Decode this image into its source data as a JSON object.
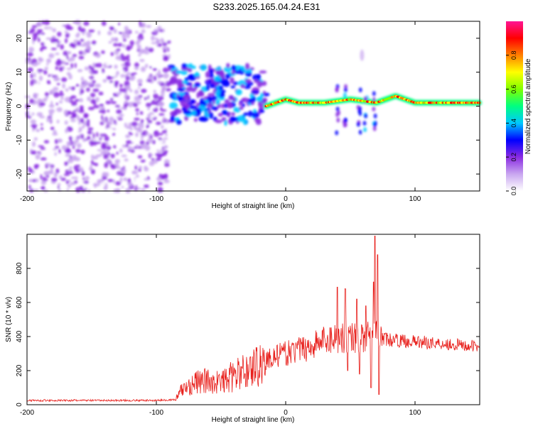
{
  "title": "S233.2025.165.04.24.E31",
  "chart_data": [
    {
      "type": "heatmap",
      "xlabel": "Height of straight line (km)",
      "ylabel": "Frequency (Hz)",
      "xlim": [
        -200,
        150
      ],
      "ylim": [
        -25,
        25
      ],
      "xticks": [
        -200,
        -100,
        0,
        100
      ],
      "yticks": [
        -20,
        -10,
        0,
        10,
        20
      ],
      "colorbar": {
        "label": "Normalized spectral amplitude",
        "range": [
          0,
          1
        ],
        "ticks": [
          "0.0",
          "0.2",
          "0.4",
          "0.6",
          "0.8"
        ],
        "colors": [
          "#ffffff",
          "#c9a6f0",
          "#8a2be2",
          "#0000ff",
          "#00c8ff",
          "#00ff80",
          "#80ff00",
          "#ffff00",
          "#ff8000",
          "#ff0000",
          "#ff1493"
        ]
      },
      "regions": [
        {
          "x": [
            -200,
            -90
          ],
          "freq": [
            -25,
            25
          ],
          "amplitude": 0.12,
          "description_free": true
        },
        {
          "x": [
            -90,
            -15
          ],
          "freq": [
            -5,
            12
          ],
          "amplitude": 0.3
        },
        {
          "x": [
            -15,
            150
          ],
          "freq": [
            -2,
            4
          ],
          "amplitude": 0.85
        }
      ],
      "ridge": [
        {
          "x": -15,
          "freq": 0
        },
        {
          "x": 0,
          "freq": 2
        },
        {
          "x": 10,
          "freq": 1
        },
        {
          "x": 30,
          "freq": 1
        },
        {
          "x": 50,
          "freq": 2
        },
        {
          "x": 70,
          "freq": 1
        },
        {
          "x": 85,
          "freq": 3
        },
        {
          "x": 100,
          "freq": 1
        },
        {
          "x": 120,
          "freq": 1
        },
        {
          "x": 150,
          "freq": 1
        }
      ]
    },
    {
      "type": "line",
      "xlabel": "Height of straight line (km)",
      "ylabel": "SNR (10 * v/v)",
      "xlim": [
        -200,
        150
      ],
      "ylim": [
        0,
        1000
      ],
      "xticks": [
        -200,
        -100,
        0,
        100
      ],
      "yticks": [
        0,
        200,
        400,
        600,
        800
      ],
      "color": "#e8201c",
      "envelope": [
        {
          "x": -200,
          "y": 25
        },
        {
          "x": -150,
          "y": 25
        },
        {
          "x": -100,
          "y": 25
        },
        {
          "x": -85,
          "y": 30
        },
        {
          "x": -80,
          "y": 90
        },
        {
          "x": -70,
          "y": 130
        },
        {
          "x": -60,
          "y": 140
        },
        {
          "x": -50,
          "y": 130
        },
        {
          "x": -40,
          "y": 170
        },
        {
          "x": -30,
          "y": 200
        },
        {
          "x": -20,
          "y": 240
        },
        {
          "x": -10,
          "y": 280
        },
        {
          "x": 0,
          "y": 300
        },
        {
          "x": 10,
          "y": 320
        },
        {
          "x": 20,
          "y": 345
        },
        {
          "x": 30,
          "y": 380
        },
        {
          "x": 40,
          "y": 395
        },
        {
          "x": 50,
          "y": 400
        },
        {
          "x": 60,
          "y": 390
        },
        {
          "x": 70,
          "y": 400
        },
        {
          "x": 80,
          "y": 380
        },
        {
          "x": 100,
          "y": 370
        },
        {
          "x": 120,
          "y": 360
        },
        {
          "x": 150,
          "y": 340
        }
      ],
      "spikes": [
        {
          "x": 40,
          "y": 690
        },
        {
          "x": 46,
          "y": 680
        },
        {
          "x": 48,
          "y": 560
        },
        {
          "x": 55,
          "y": 620
        },
        {
          "x": 62,
          "y": 580
        },
        {
          "x": 68,
          "y": 720
        },
        {
          "x": 69,
          "y": 990
        },
        {
          "x": 71,
          "y": 880
        }
      ],
      "dips": [
        {
          "x": 48,
          "y": 200
        },
        {
          "x": 57,
          "y": 180
        },
        {
          "x": 66,
          "y": 100
        },
        {
          "x": 72,
          "y": 60
        }
      ]
    }
  ]
}
